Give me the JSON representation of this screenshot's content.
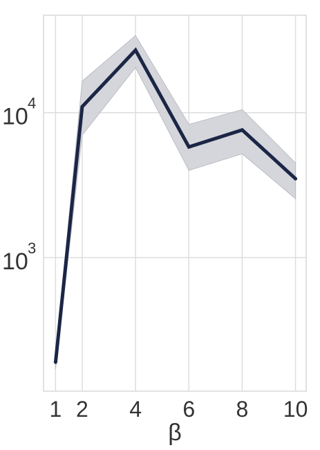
{
  "chart_data": {
    "type": "line",
    "title": "",
    "xlabel": "β",
    "ylabel": "",
    "yscale": "log",
    "grid": true,
    "xlim": [
      0.55,
      10.4
    ],
    "ylim": [
      120,
      47000
    ],
    "x": [
      1,
      2,
      4,
      6,
      8,
      10
    ],
    "xticks": [
      {
        "value": 1,
        "label": "1"
      },
      {
        "value": 2,
        "label": "2"
      },
      {
        "value": 4,
        "label": "4"
      },
      {
        "value": 6,
        "label": "6"
      },
      {
        "value": 8,
        "label": "8"
      },
      {
        "value": 10,
        "label": "10"
      }
    ],
    "yticks": [
      {
        "value": 1000,
        "base": "10",
        "exp": "3"
      },
      {
        "value": 10000,
        "base": "10",
        "exp": "4"
      }
    ],
    "series": [
      {
        "values": [
          190,
          11000,
          27000,
          5800,
          7600,
          3500
        ],
        "lower": [
          170,
          7000,
          20500,
          4000,
          5200,
          2550
        ],
        "upper": [
          210,
          16500,
          34000,
          8300,
          10500,
          4500
        ],
        "color": "#1b2646",
        "band_color": "#d3d4da"
      }
    ]
  }
}
